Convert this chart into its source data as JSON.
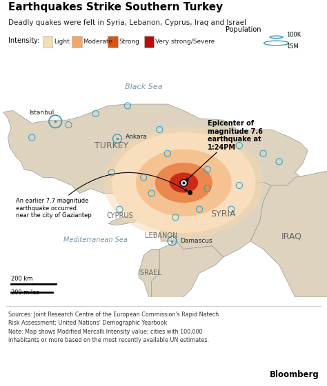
{
  "title": "Earthquakes Strike Southern Turkey",
  "subtitle": "Deadly quakes were felt in Syria, Lebanon, Cyprus, Iraq and Israel",
  "intensity_colors": [
    "#f5ddb8",
    "#f0a868",
    "#d95510",
    "#b80c0c"
  ],
  "intensity_labels": [
    "Light",
    "Moderate",
    "Strong",
    "Very strong/Severe"
  ],
  "sea_color": "#c8dce8",
  "land_color": "#ddd3be",
  "land_color2": "#e8e0d0",
  "halo_colors": [
    "#fae0c0",
    "#f5b880",
    "#e87030",
    "#c82010",
    "#900000"
  ],
  "halo_radii": [
    4.5,
    3.0,
    1.8,
    0.9,
    0.3
  ],
  "epicenter_lon": 37.02,
  "epicenter_lat": 37.17,
  "gaziantep_lon": 37.38,
  "gaziantep_lat": 37.06,
  "cities": [
    {
      "name": "Istanbul",
      "lon": 28.97,
      "lat": 41.01,
      "large": true
    },
    {
      "name": "Ankara",
      "lon": 32.85,
      "lat": 39.93,
      "large": false
    },
    {
      "name": "Damascus",
      "lon": 36.29,
      "lat": 33.51,
      "large": false
    }
  ],
  "small_city_dots": [
    [
      27.5,
      40.0
    ],
    [
      29.8,
      40.8
    ],
    [
      31.5,
      41.5
    ],
    [
      33.5,
      42.0
    ],
    [
      35.5,
      40.5
    ],
    [
      36.0,
      39.0
    ],
    [
      38.5,
      38.0
    ],
    [
      40.5,
      39.5
    ],
    [
      42.0,
      39.0
    ],
    [
      43.0,
      38.5
    ],
    [
      38.5,
      36.8
    ],
    [
      40.5,
      37.0
    ],
    [
      34.5,
      37.5
    ],
    [
      32.5,
      37.8
    ],
    [
      33.0,
      35.5
    ],
    [
      35.0,
      36.5
    ],
    [
      36.5,
      35.0
    ],
    [
      38.0,
      35.5
    ],
    [
      40.0,
      35.5
    ]
  ],
  "country_labels": [
    {
      "name": "TURKEY",
      "lon": 32.5,
      "lat": 39.5,
      "fontsize": 9
    },
    {
      "name": "SYRIA",
      "lon": 39.5,
      "lat": 35.2,
      "fontsize": 9
    },
    {
      "name": "CYPRUS",
      "lon": 33.0,
      "lat": 35.1,
      "fontsize": 7
    },
    {
      "name": "LEBANON",
      "lon": 35.6,
      "lat": 33.85,
      "fontsize": 7
    },
    {
      "name": "ISRAEL",
      "lon": 34.9,
      "lat": 31.5,
      "fontsize": 7
    },
    {
      "name": "IRAQ",
      "lon": 43.8,
      "lat": 33.8,
      "fontsize": 9
    }
  ],
  "sea_labels": [
    {
      "name": "Black Sea",
      "lon": 34.5,
      "lat": 43.2,
      "fontsize": 8
    },
    {
      "name": "Mediterranean Sea",
      "lon": 31.5,
      "lat": 33.6,
      "fontsize": 7
    }
  ],
  "lon_min": 25.5,
  "lon_max": 46.0,
  "lat_min": 30.0,
  "lat_max": 44.5,
  "epicenter_label": "Epicenter of\nmagnitude 7.6\nearthquake at\n1:24PM",
  "gaziantep_label": "An earlier 7.7 magnitude\nearthquake occurred\nnear the city of Gaziantep",
  "source_text": "Sources: Joint Research Centre of the European Commission's Rapid Natech\nRisk Assessment; United Nations' Demographic Yearbook\nNote: Map shows Modified Mercalli Intensity value; cities with 100,000\ninhabitants or more based on the most recently available UN estimates.",
  "bloomberg_text": "Bloomberg"
}
